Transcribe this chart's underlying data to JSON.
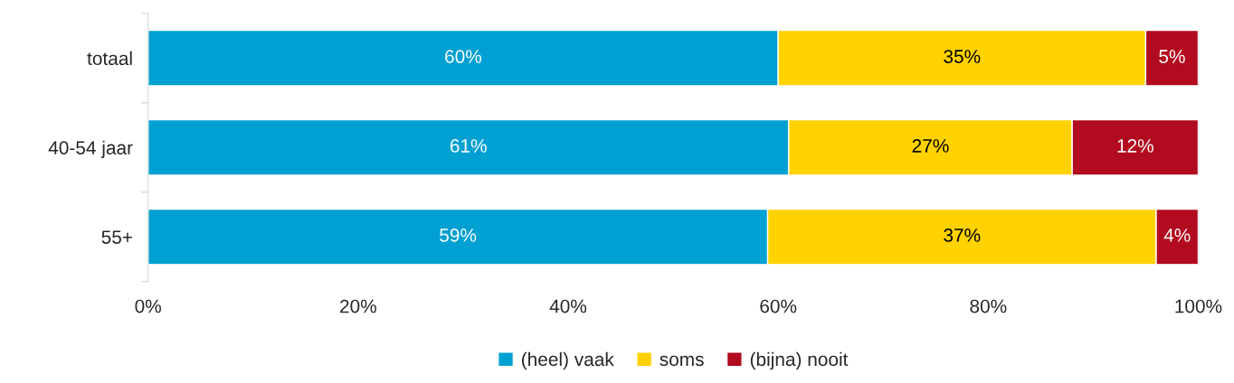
{
  "chart_data": {
    "type": "bar",
    "orientation": "horizontal",
    "stacked": true,
    "categories": [
      "totaal",
      "40-54 jaar",
      "55+"
    ],
    "series": [
      {
        "name": "(heel) vaak",
        "color": "#00a0d2",
        "values": [
          60,
          61,
          59
        ],
        "value_labels": [
          "60%",
          "61%",
          "59%"
        ]
      },
      {
        "name": "soms",
        "color": "#ffd200",
        "values": [
          35,
          27,
          37
        ],
        "value_labels": [
          "35%",
          "27%",
          "37%"
        ]
      },
      {
        "name": "(bijna) nooit",
        "color": "#b20a1e",
        "values": [
          5,
          12,
          4
        ],
        "value_labels": [
          "5%",
          "12%",
          "4%"
        ]
      }
    ],
    "xlim": [
      0,
      100
    ],
    "xticks": [
      {
        "value": 0,
        "label": "0%"
      },
      {
        "value": 20,
        "label": "20%"
      },
      {
        "value": 40,
        "label": "40%"
      },
      {
        "value": 60,
        "label": "60%"
      },
      {
        "value": 80,
        "label": "80%"
      },
      {
        "value": 100,
        "label": "100%"
      }
    ],
    "grid": false,
    "legend": "bottom"
  }
}
